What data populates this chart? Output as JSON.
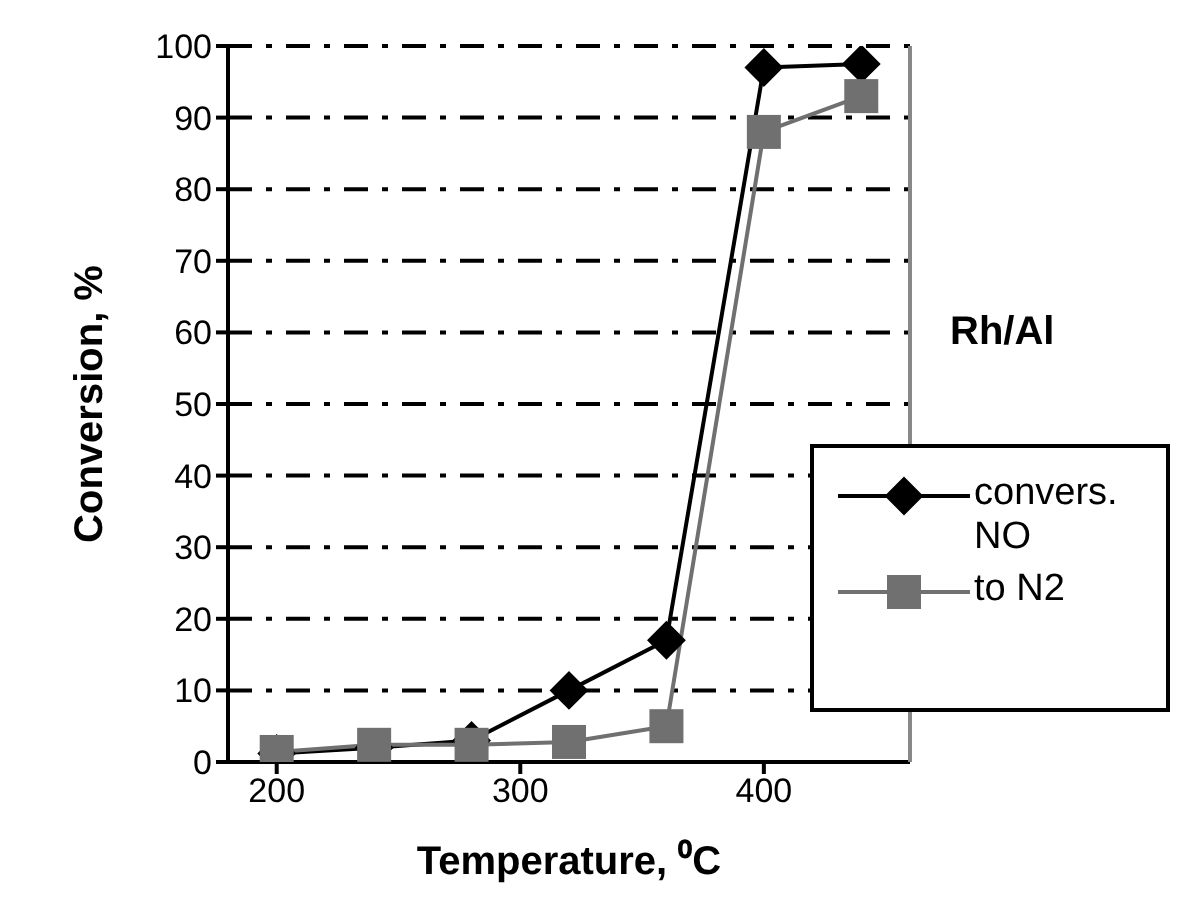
{
  "chart_data": {
    "type": "line",
    "xlabel": "Temperature, ⁰C",
    "ylabel": "Conversion, %",
    "annotations": [
      "Rh/Al"
    ],
    "x": [
      200,
      240,
      280,
      320,
      360,
      400,
      440
    ],
    "series": [
      {
        "name": "convers. NO",
        "color": "#000000",
        "marker": "diamond",
        "values": [
          1.2,
          2,
          3,
          10,
          17,
          97,
          97.5
        ]
      },
      {
        "name": "to N2",
        "color": "#707070",
        "marker": "square",
        "values": [
          1.4,
          2.4,
          2.4,
          2.8,
          5,
          88,
          93
        ]
      }
    ],
    "xlim": [
      180,
      460
    ],
    "xticks": [
      200,
      300,
      400
    ],
    "ylim": [
      0,
      100
    ],
    "yticks": [
      0,
      10,
      20,
      30,
      40,
      50,
      60,
      70,
      80,
      90,
      100
    ],
    "grid": "y",
    "legend": "right",
    "line_style": "solid"
  }
}
